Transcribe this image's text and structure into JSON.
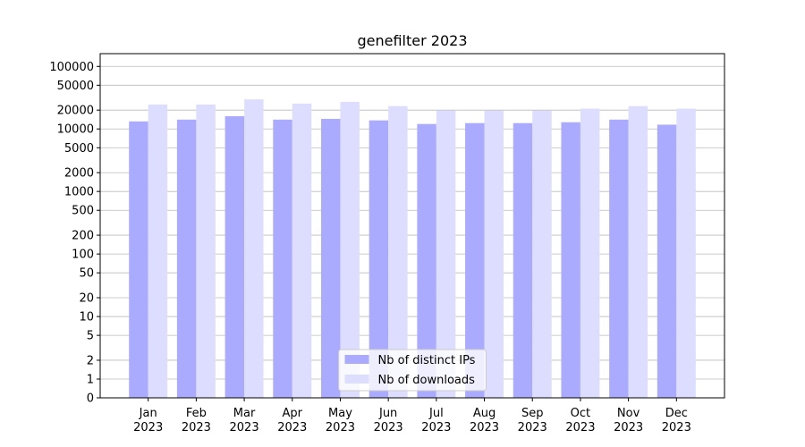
{
  "chart_data": {
    "type": "bar",
    "title": "genefilter 2023",
    "categories": [
      "Jan\n2023",
      "Feb\n2023",
      "Mar\n2023",
      "Apr\n2023",
      "May\n2023",
      "Jun\n2023",
      "Jul\n2023",
      "Aug\n2023",
      "Sep\n2023",
      "Oct\n2023",
      "Nov\n2023",
      "Dec\n2023"
    ],
    "series": [
      {
        "name": "Nb of distinct IPs",
        "color": "#aaaaff",
        "values": [
          13200,
          14100,
          16000,
          14100,
          14500,
          13700,
          12000,
          12400,
          12400,
          12800,
          14100,
          11700
        ]
      },
      {
        "name": "Nb of downloads",
        "color": "#ddddff",
        "values": [
          24600,
          24600,
          29700,
          25400,
          27100,
          23200,
          19800,
          19800,
          19800,
          21100,
          23200,
          21100
        ]
      }
    ],
    "yscale": "symlog",
    "ylim": [
      0,
      160000
    ],
    "yticks": [
      0,
      1,
      2,
      5,
      10,
      20,
      50,
      100,
      200,
      500,
      1000,
      2000,
      5000,
      10000,
      20000,
      50000,
      100000
    ],
    "grid": true,
    "legend": "lower center"
  }
}
